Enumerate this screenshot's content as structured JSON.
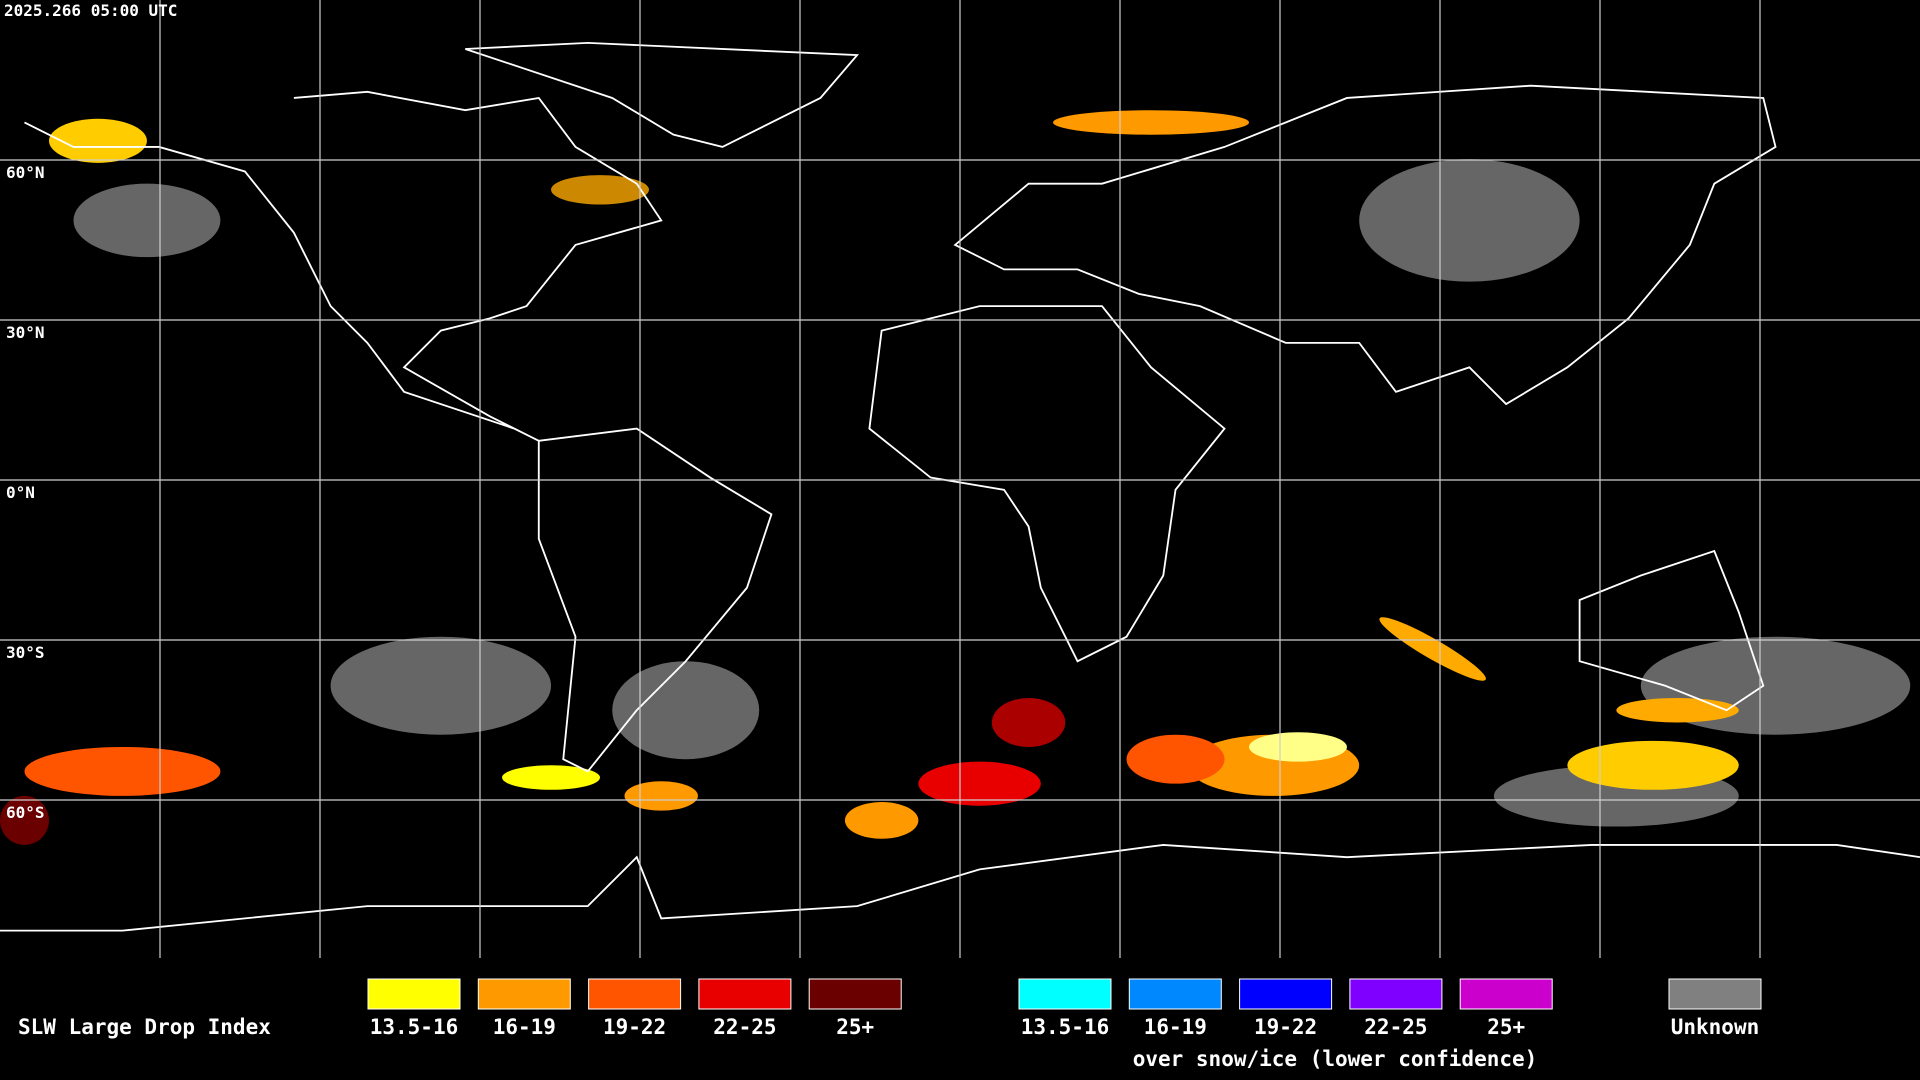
{
  "timestamp": "2025.266 05:00 UTC",
  "latitude_labels": [
    "60°N",
    "30°N",
    "0°N",
    "30°S",
    "60°S"
  ],
  "legend": {
    "title": "SLW Large Drop Index",
    "items": [
      {
        "label": "13.5-16",
        "color": "#ffff00"
      },
      {
        "label": "16-19",
        "color": "#ff9900"
      },
      {
        "label": "19-22",
        "color": "#ff5500"
      },
      {
        "label": "22-25",
        "color": "#e80000"
      },
      {
        "label": "25+",
        "color": "#6b0000"
      }
    ],
    "snow_ice_items": [
      {
        "label": "13.5-16",
        "color": "#00ffff"
      },
      {
        "label": "16-19",
        "color": "#0088ff"
      },
      {
        "label": "19-22",
        "color": "#0000ff"
      },
      {
        "label": "22-25",
        "color": "#8000ff"
      },
      {
        "label": "25+",
        "color": "#cc00cc"
      }
    ],
    "snow_ice_caption": "over snow/ice (lower confidence)",
    "unknown": {
      "label": "Unknown",
      "color": "#808080"
    }
  }
}
